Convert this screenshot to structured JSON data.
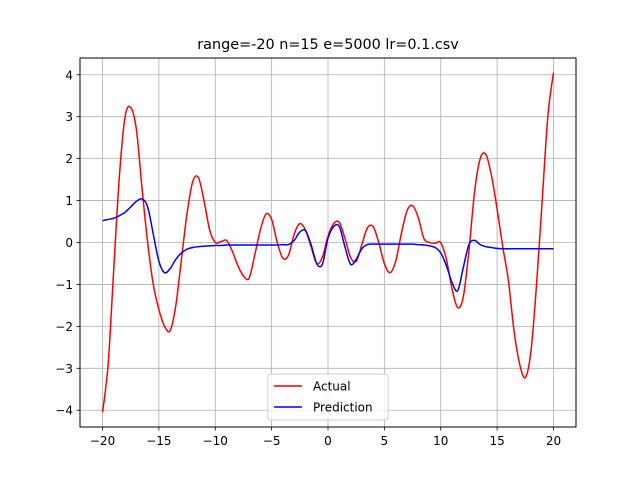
{
  "chart_data": {
    "type": "line",
    "title": "range=-20 n=15 e=5000 lr=0.1.csv",
    "xlabel": "",
    "ylabel": "",
    "xlim": [
      -22.0,
      22.0
    ],
    "ylim": [
      -4.4,
      4.4
    ],
    "xticks": [
      -20,
      -15,
      -10,
      -5,
      0,
      5,
      10,
      15,
      20
    ],
    "xtick_labels": [
      "−20",
      "−15",
      "−10",
      "−5",
      "0",
      "5",
      "10",
      "15",
      "20"
    ],
    "yticks": [
      -4,
      -3,
      -2,
      -1,
      0,
      1,
      2,
      3,
      4
    ],
    "ytick_labels": [
      "−4",
      "−3",
      "−2",
      "−1",
      "0",
      "1",
      "2",
      "3",
      "4"
    ],
    "grid": true,
    "legend_position": "bottom-center",
    "series": [
      {
        "name": "Actual",
        "color": "#ff0000",
        "x": [
          -20,
          -19.5,
          -19,
          -18.5,
          -18,
          -17.5,
          -17,
          -16.5,
          -16,
          -15.5,
          -15,
          -14.5,
          -14,
          -13.5,
          -13,
          -12.5,
          -12,
          -11.5,
          -11,
          -10.5,
          -10,
          -9.5,
          -9,
          -8.5,
          -8,
          -7.5,
          -7,
          -6.5,
          -6,
          -5.5,
          -5,
          -4.5,
          -4,
          -3.5,
          -3,
          -2.5,
          -2,
          -1.5,
          -1,
          -0.5,
          0,
          0.5,
          1,
          1.5,
          2,
          2.5,
          3,
          3.5,
          4,
          4.5,
          5,
          5.5,
          6,
          6.5,
          7,
          7.5,
          8,
          8.5,
          9,
          9.5,
          10,
          10.5,
          11,
          11.5,
          12,
          12.5,
          13,
          13.5,
          14,
          14.5,
          15,
          15.5,
          16,
          16.5,
          17,
          17.5,
          18,
          18.5,
          19,
          19.5,
          20
        ],
        "y": [
          -4.05,
          -2.9,
          -0.6,
          1.6,
          3.0,
          3.22,
          2.7,
          1.3,
          0.0,
          -1.0,
          -1.6,
          -2.0,
          -2.1,
          -1.5,
          -0.4,
          0.7,
          1.45,
          1.55,
          1.0,
          0.3,
          0.0,
          0.02,
          0.05,
          -0.2,
          -0.55,
          -0.8,
          -0.85,
          -0.3,
          0.3,
          0.68,
          0.55,
          0.0,
          -0.38,
          -0.3,
          0.2,
          0.45,
          0.3,
          -0.1,
          -0.5,
          -0.35,
          0.15,
          0.45,
          0.48,
          0.1,
          -0.35,
          -0.45,
          -0.05,
          0.35,
          0.38,
          0.0,
          -0.5,
          -0.72,
          -0.45,
          0.2,
          0.75,
          0.88,
          0.6,
          0.1,
          0.0,
          -0.02,
          0.0,
          -0.4,
          -1.1,
          -1.55,
          -1.3,
          -0.2,
          1.2,
          2.0,
          2.1,
          1.6,
          0.8,
          -0.1,
          -0.9,
          -2.1,
          -2.9,
          -3.22,
          -2.6,
          -1.0,
          1.0,
          3.0,
          4.05
        ]
      },
      {
        "name": "Prediction",
        "color": "#0000ff",
        "x": [
          -20,
          -19.5,
          -19,
          -18.5,
          -18,
          -17.5,
          -17,
          -16.5,
          -16,
          -15.5,
          -15,
          -14.5,
          -14,
          -13.5,
          -13,
          -12.5,
          -12,
          -11.5,
          -11,
          -10.5,
          -10,
          -9.5,
          -9,
          -8.5,
          -8,
          -7.5,
          -7,
          -6.5,
          -6,
          -5.5,
          -5,
          -4.5,
          -4,
          -3.5,
          -3,
          -2.5,
          -2,
          -1.5,
          -1,
          -0.5,
          0,
          0.5,
          1,
          1.5,
          2,
          2.5,
          3,
          3.5,
          4,
          4.5,
          5,
          5.5,
          6,
          6.5,
          7,
          7.5,
          8,
          8.5,
          9,
          9.5,
          10,
          10.5,
          11,
          11.5,
          12,
          12.5,
          13,
          13.5,
          14,
          14.5,
          15,
          15.5,
          16,
          16.5,
          17,
          17.5,
          18,
          18.5,
          19,
          19.5,
          20
        ],
        "y": [
          0.52,
          0.55,
          0.58,
          0.64,
          0.72,
          0.85,
          0.98,
          1.04,
          0.85,
          0.2,
          -0.45,
          -0.72,
          -0.62,
          -0.4,
          -0.25,
          -0.16,
          -0.12,
          -0.1,
          -0.09,
          -0.08,
          -0.07,
          -0.07,
          -0.06,
          -0.06,
          -0.06,
          -0.06,
          -0.06,
          -0.06,
          -0.06,
          -0.06,
          -0.06,
          -0.06,
          -0.05,
          -0.05,
          0.05,
          0.25,
          0.28,
          -0.05,
          -0.5,
          -0.52,
          0.1,
          0.38,
          0.38,
          -0.1,
          -0.52,
          -0.4,
          -0.15,
          -0.05,
          -0.04,
          -0.04,
          -0.04,
          -0.04,
          -0.04,
          -0.04,
          -0.04,
          -0.04,
          -0.05,
          -0.06,
          -0.08,
          -0.12,
          -0.25,
          -0.55,
          -0.95,
          -1.15,
          -0.6,
          -0.05,
          0.05,
          -0.05,
          -0.1,
          -0.12,
          -0.14,
          -0.15,
          -0.15,
          -0.15,
          -0.15,
          -0.15,
          -0.15,
          -0.15,
          -0.15,
          -0.15,
          -0.15
        ]
      }
    ]
  }
}
